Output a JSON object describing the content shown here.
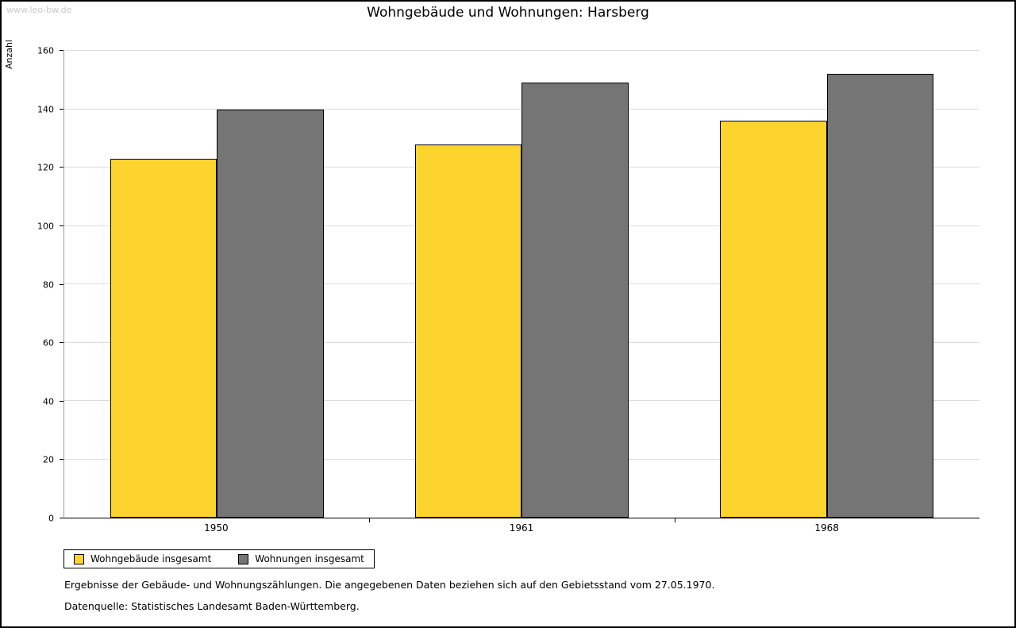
{
  "watermark": "www.leo-bw.de",
  "title": "Wohngebäude und Wohnungen: Harsberg",
  "chart_data": {
    "type": "bar",
    "categories": [
      "1950",
      "1961",
      "1968"
    ],
    "series": [
      {
        "name": "Wohngebäude insgesamt",
        "color": "#fcd42d",
        "values": [
          123,
          128,
          136
        ]
      },
      {
        "name": "Wohnungen insgesamt",
        "color": "#757575",
        "values": [
          140,
          149,
          152
        ]
      }
    ],
    "title": "Wohngebäude und Wohnungen: Harsberg",
    "xlabel": "",
    "ylabel": "Anzahl",
    "ylim": [
      0,
      160
    ],
    "ytick_step": 20,
    "grid": true,
    "legend_position": "bottom-left"
  },
  "footnotes": [
    "Ergebnisse der Gebäude- und Wohnungszählungen. Die angegebenen Daten beziehen sich auf den Gebietsstand vom 27.05.1970.",
    "Datenquelle: Statistisches Landesamt Baden-Württemberg."
  ]
}
